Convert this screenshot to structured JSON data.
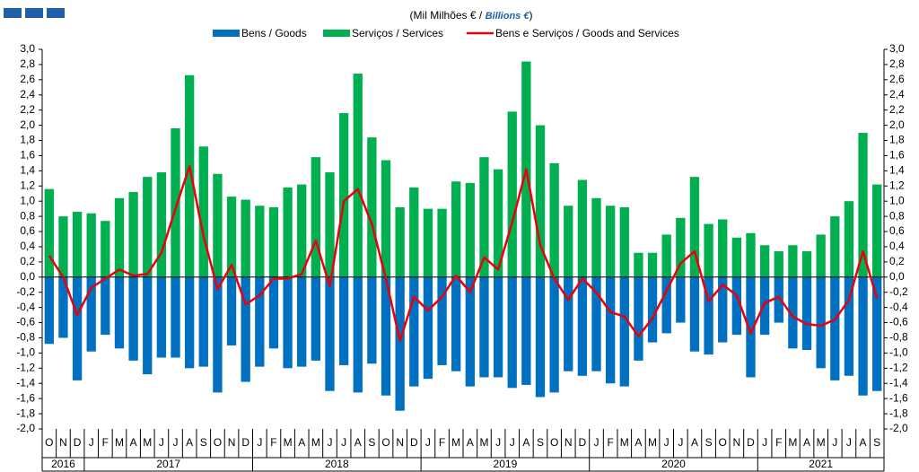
{
  "chart_data": {
    "type": "bar",
    "title_parts": [
      "(Mil Milhões  € / ",
      "Billions €",
      ")"
    ],
    "categories": [
      "O",
      "N",
      "D",
      "J",
      "F",
      "M",
      "A",
      "M",
      "J",
      "J",
      "A",
      "S",
      "O",
      "N",
      "D",
      "J",
      "F",
      "M",
      "A",
      "M",
      "J",
      "J",
      "A",
      "S",
      "O",
      "N",
      "D",
      "J",
      "F",
      "M",
      "A",
      "M",
      "J",
      "J",
      "A",
      "S",
      "O",
      "N",
      "D",
      "J",
      "F",
      "M",
      "A",
      "M",
      "J",
      "J",
      "A",
      "S",
      "O",
      "N",
      "D",
      "J",
      "F",
      "M",
      "A",
      "M",
      "J",
      "J",
      "A",
      "S"
    ],
    "years": [
      "2016",
      "2017",
      "2018",
      "2019",
      "2020",
      "2021"
    ],
    "series": [
      {
        "name": "Bens / Goods",
        "color": "#0070c0",
        "type": "bar",
        "values": [
          -0.88,
          -0.8,
          -1.36,
          -0.98,
          -0.76,
          -0.94,
          -1.1,
          -1.28,
          -1.06,
          -1.06,
          -1.2,
          -1.18,
          -1.52,
          -0.9,
          -1.38,
          -1.18,
          -0.94,
          -1.2,
          -1.18,
          -1.1,
          -1.5,
          -1.16,
          -1.52,
          -1.14,
          -1.56,
          -1.76,
          -1.44,
          -1.34,
          -1.16,
          -1.24,
          -1.44,
          -1.32,
          -1.32,
          -1.46,
          -1.42,
          -1.58,
          -1.52,
          -1.24,
          -1.3,
          -1.24,
          -1.4,
          -1.44,
          -1.1,
          -0.86,
          -0.74,
          -0.6,
          -0.98,
          -1.02,
          -0.86,
          -0.76,
          -1.32,
          -0.76,
          -0.6,
          -0.94,
          -0.96,
          -1.2,
          -1.36,
          -1.3,
          -1.56,
          -1.5
        ]
      },
      {
        "name": "Serviços / Services",
        "color": "#00b050",
        "type": "bar",
        "values": [
          1.16,
          0.8,
          0.86,
          0.84,
          0.74,
          1.04,
          1.12,
          1.32,
          1.38,
          1.96,
          2.66,
          1.72,
          1.36,
          1.06,
          1.02,
          0.94,
          0.92,
          1.18,
          1.22,
          1.58,
          1.38,
          2.16,
          2.68,
          1.84,
          1.54,
          0.92,
          1.18,
          0.9,
          0.9,
          1.26,
          1.24,
          1.58,
          1.42,
          2.18,
          2.84,
          2.0,
          1.5,
          0.94,
          1.28,
          1.04,
          0.94,
          0.92,
          0.32,
          0.32,
          0.56,
          0.78,
          1.32,
          0.7,
          0.76,
          0.52,
          0.58,
          0.42,
          0.34,
          0.42,
          0.34,
          0.56,
          0.8,
          1.0,
          1.9,
          1.22
        ]
      },
      {
        "name": "Bens e Serviços  / Goods and Services",
        "color": "#e8000b",
        "type": "line",
        "values": [
          0.28,
          0.0,
          -0.5,
          -0.14,
          -0.02,
          0.1,
          0.02,
          0.04,
          0.32,
          0.9,
          1.46,
          0.54,
          -0.16,
          0.16,
          -0.36,
          -0.24,
          -0.02,
          -0.02,
          0.04,
          0.48,
          -0.12,
          1.0,
          1.16,
          0.7,
          -0.02,
          -0.84,
          -0.26,
          -0.44,
          -0.26,
          0.02,
          -0.2,
          0.26,
          0.1,
          0.72,
          1.42,
          0.42,
          -0.02,
          -0.3,
          -0.02,
          -0.2,
          -0.46,
          -0.52,
          -0.78,
          -0.54,
          -0.18,
          0.18,
          0.34,
          -0.32,
          -0.1,
          -0.24,
          -0.74,
          -0.34,
          -0.26,
          -0.52,
          -0.62,
          -0.64,
          -0.56,
          -0.3,
          0.34,
          -0.28
        ]
      }
    ],
    "ylim": [
      -2.0,
      3.0
    ],
    "yticks": [
      {
        "value": -2.0,
        "label": "-2,0"
      },
      {
        "value": -1.8,
        "label": "-1,8"
      },
      {
        "value": -1.6,
        "label": "-1,6"
      },
      {
        "value": -1.4,
        "label": "-1,4"
      },
      {
        "value": -1.2,
        "label": "-1,2"
      },
      {
        "value": -1.0,
        "label": "-1,0"
      },
      {
        "value": -0.8,
        "label": "-0,8"
      },
      {
        "value": -0.6,
        "label": "-0,6"
      },
      {
        "value": -0.4,
        "label": "-0,4"
      },
      {
        "value": -0.2,
        "label": "-0,2"
      },
      {
        "value": 0,
        "label": "0,0"
      },
      {
        "value": 0.2,
        "label": "0,2"
      },
      {
        "value": 0.4,
        "label": "0,4"
      },
      {
        "value": 0.6,
        "label": "0,6"
      },
      {
        "value": 0.8,
        "label": "0,8"
      },
      {
        "value": 1.0,
        "label": "1,0"
      },
      {
        "value": 1.2,
        "label": "1,2"
      },
      {
        "value": 1.4,
        "label": "1,4"
      },
      {
        "value": 1.6,
        "label": "1,6"
      },
      {
        "value": 1.8,
        "label": "1,8"
      },
      {
        "value": 2.0,
        "label": "2,0"
      },
      {
        "value": 2.2,
        "label": "2,2"
      },
      {
        "value": 2.4,
        "label": "2,4"
      },
      {
        "value": 2.6,
        "label": "2,6"
      },
      {
        "value": 2.8,
        "label": "2,8"
      },
      {
        "value": 3.0,
        "label": "3,0"
      }
    ],
    "grid": false
  }
}
